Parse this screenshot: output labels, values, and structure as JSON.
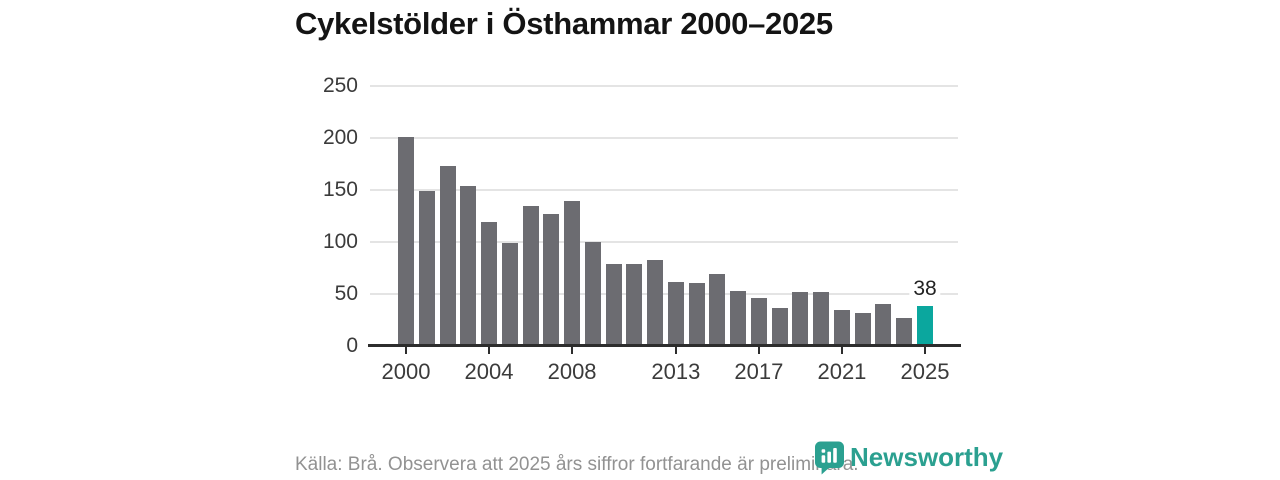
{
  "chart_data": {
    "type": "bar",
    "title": "Cykelstölder i Östhammar 2000–2025",
    "categories": [
      2000,
      2001,
      2002,
      2003,
      2004,
      2005,
      2006,
      2007,
      2008,
      2009,
      2010,
      2011,
      2012,
      2013,
      2014,
      2015,
      2016,
      2017,
      2018,
      2019,
      2020,
      2021,
      2022,
      2023,
      2024,
      2025
    ],
    "values": [
      201,
      149,
      173,
      154,
      119,
      99,
      135,
      127,
      139,
      100,
      79,
      79,
      83,
      62,
      61,
      69,
      53,
      46,
      37,
      52,
      52,
      35,
      32,
      40,
      27,
      38
    ],
    "ylim": [
      0,
      250
    ],
    "yticks": [
      0,
      50,
      100,
      150,
      200,
      250
    ],
    "xticks": [
      2000,
      2004,
      2008,
      2013,
      2017,
      2021,
      2025
    ],
    "grid": true,
    "legend": "none",
    "bar_color": "#6c6c71",
    "highlight": {
      "index": 25,
      "label": "38",
      "color": "#0ba79e"
    }
  },
  "footer": {
    "source_note": "Källa: Brå. Observera att 2025 års siffror fortfarande är preliminära."
  },
  "branding": {
    "logo_text": "Newsworthy",
    "logo_color": "#2ba090"
  },
  "colors": {
    "background": "#ffffff",
    "gridline": "#e4e4e4",
    "axis": "#2d2d2d",
    "title_text": "#141414",
    "tick_text": "#3b3b3b",
    "source_text": "#929292"
  }
}
